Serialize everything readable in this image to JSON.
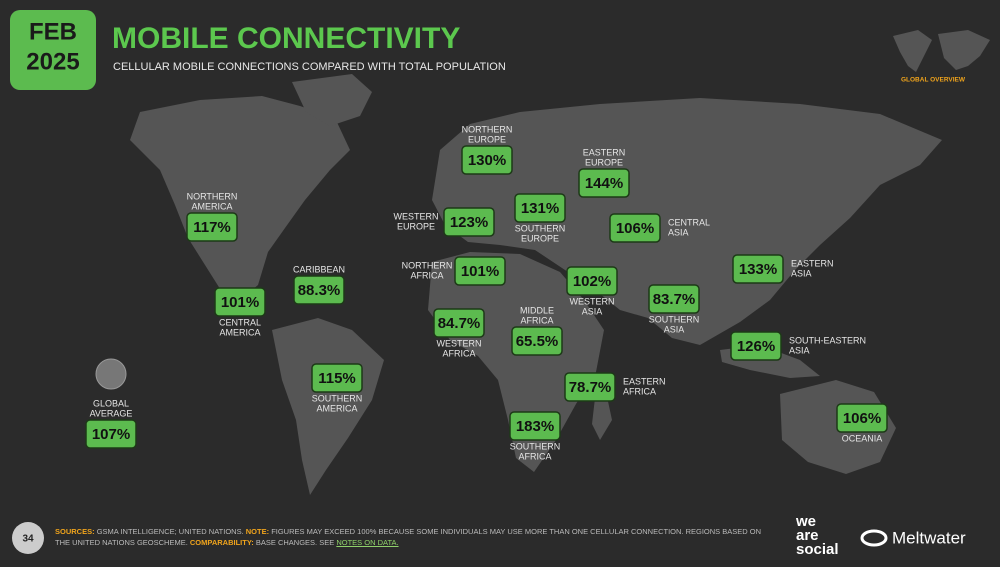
{
  "badge": {
    "month": "FEB",
    "year": "2025"
  },
  "title": "MOBILE CONNECTIVITY",
  "subtitle": "CELLULAR MOBILE CONNECTIONS COMPARED WITH TOTAL POPULATION",
  "overview_label": "GLOBAL OVERVIEW",
  "regions": [
    {
      "name": [
        "NORTHERN",
        "EUROPE"
      ],
      "value": "130%"
    },
    {
      "name": [
        "EASTERN",
        "EUROPE"
      ],
      "value": "144%"
    },
    {
      "name": [
        "WESTERN",
        "EUROPE"
      ],
      "value": "123%"
    },
    {
      "name": [
        "SOUTHERN",
        "EUROPE"
      ],
      "value": "131%"
    },
    {
      "name": [
        "CENTRAL",
        "ASIA"
      ],
      "value": "106%"
    },
    {
      "name": [
        "NORTHERN",
        "AMERICA"
      ],
      "value": "117%"
    },
    {
      "name": [
        "CARIBBEAN"
      ],
      "value": "88.3%"
    },
    {
      "name": [
        "NORTHERN",
        "AFRICA"
      ],
      "value": "101%"
    },
    {
      "name": [
        "CENTRAL",
        "AMERICA"
      ],
      "value": "101%"
    },
    {
      "name": [
        "WESTERN",
        "ASIA"
      ],
      "value": "102%"
    },
    {
      "name": [
        "EASTERN",
        "ASIA"
      ],
      "value": "133%"
    },
    {
      "name": [
        "SOUTHERN",
        "ASIA"
      ],
      "value": "83.7%"
    },
    {
      "name": [
        "WESTERN",
        "AFRICA"
      ],
      "value": "84.7%"
    },
    {
      "name": [
        "MIDDLE",
        "AFRICA"
      ],
      "value": "65.5%"
    },
    {
      "name": [
        "SOUTH-EASTERN",
        "ASIA"
      ],
      "value": "126%"
    },
    {
      "name": [
        "EASTERN",
        "AFRICA"
      ],
      "value": "78.7%"
    },
    {
      "name": [
        "SOUTHERN",
        "AMERICA"
      ],
      "value": "115%"
    },
    {
      "name": [
        "SOUTHERN",
        "AFRICA"
      ],
      "value": "183%"
    },
    {
      "name": [
        "OCEANIA"
      ],
      "value": "106%"
    },
    {
      "name": [
        "GLOBAL",
        "AVERAGE"
      ],
      "value": "107%"
    }
  ],
  "footer": {
    "page": "34",
    "sources_label": "SOURCES:",
    "sources": "GSMA INTELLIGENCE; UNITED NATIONS.",
    "note_label": "NOTE:",
    "note": "FIGURES MAY EXCEED 100% BECAUSE SOME INDIVIDUALS MAY USE MORE THAN ONE CELLULAR CONNECTION. REGIONS BASED ON THE UNITED NATIONS GEOSCHEME.",
    "comparability_label": "COMPARABILITY:",
    "comparability": "BASE CHANGES. SEE",
    "notes_link": "NOTES ON DATA.",
    "logo_was": [
      "we",
      "are",
      "social"
    ],
    "logo_meltwater": "Meltwater"
  }
}
